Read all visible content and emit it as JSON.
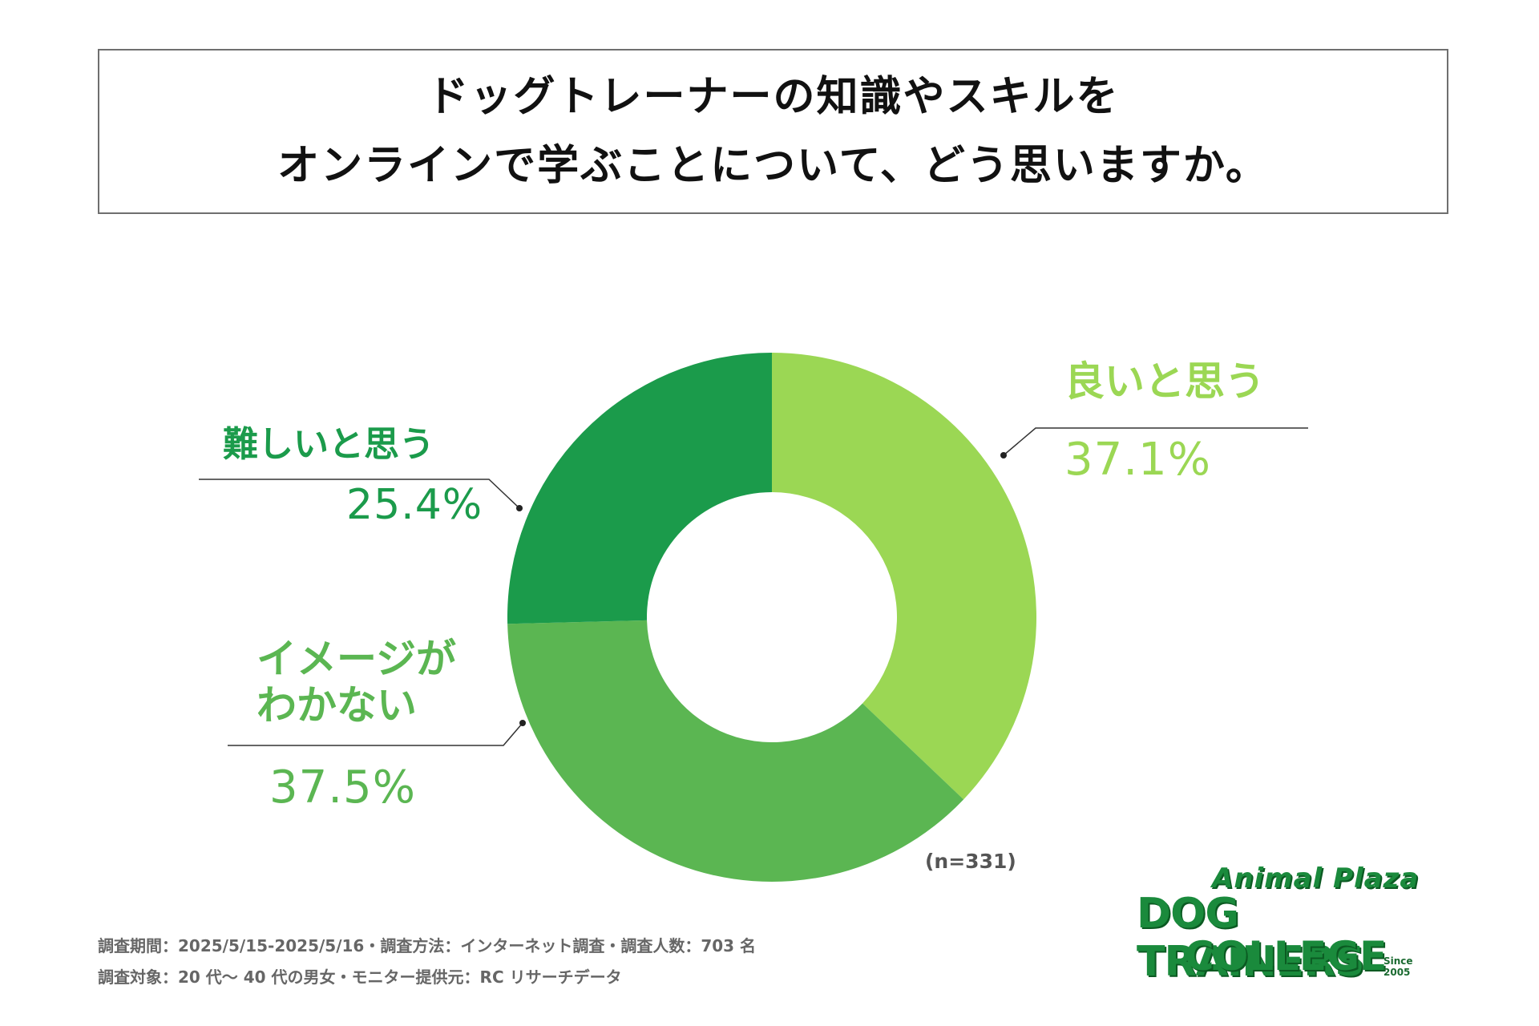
{
  "title": {
    "line1": "ドッグトレーナーの知識やスキルを",
    "line2": "オンラインで学ぶことについて、どう思いますか。"
  },
  "chart_data": {
    "type": "pie",
    "donut": true,
    "slices": [
      {
        "label": "良いと思う",
        "value": 37.1,
        "value_text": "37.1%",
        "color": "#9bd754"
      },
      {
        "label_lines": [
          "イメージが",
          "わかない"
        ],
        "value": 37.5,
        "value_text": "37.5%",
        "color": "#5bb652"
      },
      {
        "label": "難しいと思う",
        "value": 25.4,
        "value_text": "25.4%",
        "color": "#1b9b4b"
      }
    ],
    "start": "top",
    "direction": "clockwise",
    "n_label": "(n=331)"
  },
  "footer": {
    "line1": "調査期間：2025/5/15-2025/5/16・調査方法：インターネット調査・調査人数：703 名",
    "line2": "調査対象：20 代～ 40 代の男女・モニター提供元：RC リサーチデータ"
  },
  "logo": {
    "top": "Animal Plaza",
    "middle": "DOG TRAINERS",
    "bottom": "COLLEGE",
    "since": "Since 2005"
  }
}
